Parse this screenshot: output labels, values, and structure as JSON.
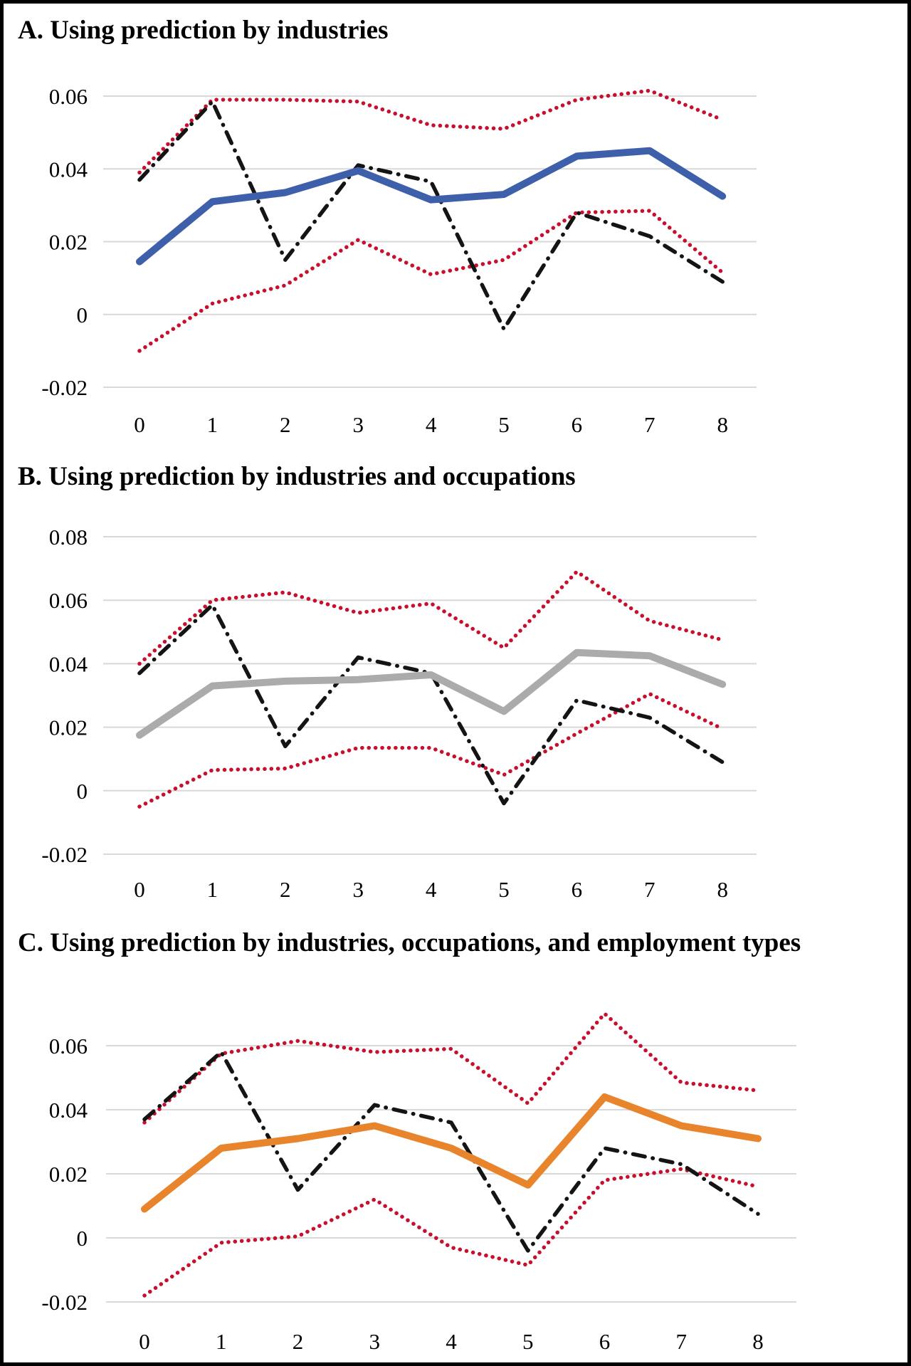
{
  "figure": {
    "background": "#ffffff",
    "border_color": "#000000"
  },
  "styles": {
    "gridline_color": "#d9d9d9",
    "ci_color": "#c8102e",
    "dash_dot_color": "#141414",
    "text_color": "#000000",
    "panel_accents": {
      "A": "#3e60aa",
      "B": "#ababab",
      "C": "#e8842c"
    }
  },
  "chart_data": [
    {
      "type": "line",
      "id": "A",
      "title": "A. Using prediction by industries",
      "x": [
        0,
        1,
        2,
        3,
        4,
        5,
        6,
        7,
        8
      ],
      "xlabel": "",
      "ylabel": "",
      "xlim": [
        0,
        8
      ],
      "ylim": [
        -0.02,
        0.06
      ],
      "yticks": [
        0.06,
        0.04,
        0.02,
        0,
        -0.02
      ],
      "ytick_labels": [
        "0.06",
        "0.04",
        "0.02",
        "0",
        "-0.02"
      ],
      "xtick_labels": [
        "0",
        "1",
        "2",
        "3",
        "4",
        "5",
        "6",
        "7",
        "8"
      ],
      "grid": true,
      "legend": "none",
      "series": [
        {
          "name": "point_estimate",
          "style": "solid-thick",
          "color": "#3e60aa",
          "values": [
            0.0145,
            0.031,
            0.0335,
            0.0395,
            0.0315,
            0.033,
            0.0435,
            0.045,
            0.0325
          ]
        },
        {
          "name": "dash_dot_reference",
          "style": "dash-dot",
          "color": "#141414",
          "values": [
            0.037,
            0.0585,
            0.015,
            0.041,
            0.0365,
            -0.004,
            0.028,
            0.0215,
            0.009
          ]
        },
        {
          "name": "ci_upper",
          "style": "dotted",
          "color": "#c8102e",
          "values": [
            0.039,
            0.059,
            0.059,
            0.0585,
            0.052,
            0.051,
            0.059,
            0.0615,
            0.0535
          ]
        },
        {
          "name": "ci_lower",
          "style": "dotted",
          "color": "#c8102e",
          "values": [
            -0.01,
            0.003,
            0.008,
            0.0205,
            0.011,
            0.015,
            0.028,
            0.0285,
            0.0115
          ]
        }
      ]
    },
    {
      "type": "line",
      "id": "B",
      "title": "B. Using prediction by industries and occupations",
      "x": [
        0,
        1,
        2,
        3,
        4,
        5,
        6,
        7,
        8
      ],
      "xlabel": "",
      "ylabel": "",
      "xlim": [
        0,
        8
      ],
      "ylim": [
        -0.02,
        0.08
      ],
      "yticks": [
        0.08,
        0.06,
        0.04,
        0.02,
        0,
        -0.02
      ],
      "ytick_labels": [
        "0.08",
        "0.06",
        "0.04",
        "0.02",
        "0",
        "-0.02"
      ],
      "xtick_labels": [
        "0",
        "1",
        "2",
        "3",
        "4",
        "5",
        "6",
        "7",
        "8"
      ],
      "grid": true,
      "legend": "none",
      "series": [
        {
          "name": "point_estimate",
          "style": "solid-thick",
          "color": "#ababab",
          "values": [
            0.0175,
            0.033,
            0.0345,
            0.035,
            0.0365,
            0.025,
            0.0435,
            0.0425,
            0.0335
          ]
        },
        {
          "name": "dash_dot_reference",
          "style": "dash-dot",
          "color": "#141414",
          "values": [
            0.037,
            0.0585,
            0.014,
            0.042,
            0.037,
            -0.004,
            0.0285,
            0.023,
            0.009
          ]
        },
        {
          "name": "ci_upper",
          "style": "dotted",
          "color": "#c8102e",
          "values": [
            0.04,
            0.06,
            0.0625,
            0.056,
            0.059,
            0.045,
            0.069,
            0.0535,
            0.0475
          ]
        },
        {
          "name": "ci_lower",
          "style": "dotted",
          "color": "#c8102e",
          "values": [
            -0.005,
            0.0065,
            0.007,
            0.0135,
            0.0135,
            0.005,
            0.018,
            0.0305,
            0.0195
          ]
        }
      ]
    },
    {
      "type": "line",
      "id": "C",
      "title": "C. Using prediction by industries, occupations, and employment types",
      "x": [
        0,
        1,
        2,
        3,
        4,
        5,
        6,
        7,
        8
      ],
      "xlabel": "",
      "ylabel": "",
      "xlim": [
        0,
        8
      ],
      "ylim": [
        -0.02,
        0.06
      ],
      "yticks": [
        0.06,
        0.04,
        0.02,
        0,
        -0.02
      ],
      "ytick_labels": [
        "0.06",
        "0.04",
        "0.02",
        "0",
        "-0.02"
      ],
      "xtick_labels": [
        "0",
        "1",
        "2",
        "3",
        "4",
        "5",
        "6",
        "7",
        "8"
      ],
      "grid": true,
      "legend": "none",
      "series": [
        {
          "name": "point_estimate",
          "style": "solid-thick",
          "color": "#e8842c",
          "values": [
            0.009,
            0.028,
            0.031,
            0.035,
            0.028,
            0.0165,
            0.044,
            0.035,
            0.031
          ]
        },
        {
          "name": "dash_dot_reference",
          "style": "dash-dot",
          "color": "#141414",
          "values": [
            0.037,
            0.058,
            0.015,
            0.0415,
            0.036,
            -0.004,
            0.028,
            0.023,
            0.0075
          ]
        },
        {
          "name": "ci_upper",
          "style": "dotted",
          "color": "#c8102e",
          "values": [
            0.036,
            0.0575,
            0.0615,
            0.058,
            0.059,
            0.042,
            0.07,
            0.0485,
            0.046
          ]
        },
        {
          "name": "ci_lower",
          "style": "dotted",
          "color": "#c8102e",
          "values": [
            -0.018,
            -0.0015,
            0.0005,
            0.012,
            -0.003,
            -0.0085,
            0.018,
            0.0215,
            0.016
          ]
        }
      ]
    }
  ]
}
